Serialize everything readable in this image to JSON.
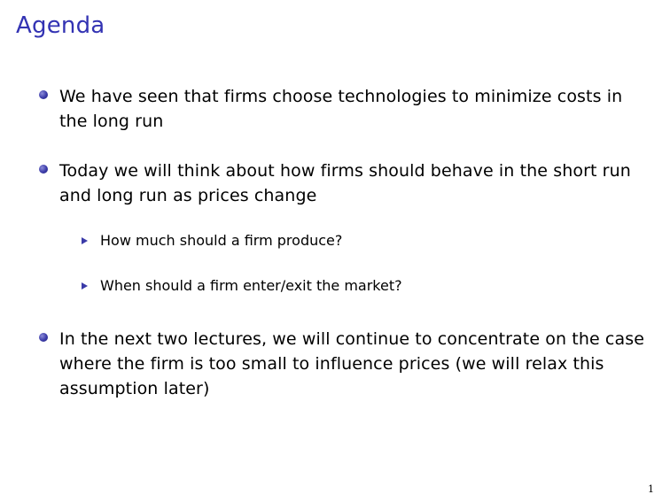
{
  "slide": {
    "title": "Agenda",
    "bullets": [
      "We have seen that firms choose technologies to minimize costs in the long run",
      "Today we will think about how firms should behave in the short run and long run as prices change",
      "In the next two lectures, we will continue to concentrate on the case where the firm is too small to influence prices (we will relax this assumption later)"
    ],
    "subbullets": [
      "How much should a firm produce?",
      "When should a firm enter/exit the market?"
    ],
    "page_number": "1"
  },
  "colors": {
    "title": "#3333b3",
    "bullet_marker": "#3a3aa8"
  },
  "icons": {
    "bullet": "ball-bullet-icon",
    "subbullet": "triangle-bullet-icon"
  }
}
